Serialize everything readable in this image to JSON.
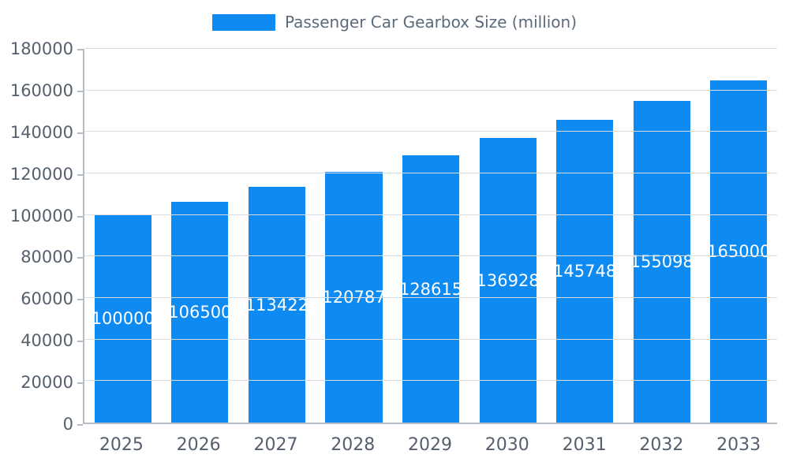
{
  "chart_data": {
    "type": "bar",
    "title": "Passenger Car Gearbox Size (million)",
    "categories": [
      "2025",
      "2026",
      "2027",
      "2028",
      "2029",
      "2030",
      "2031",
      "2032",
      "2033"
    ],
    "values": [
      100000,
      106500,
      113422,
      120787,
      128615,
      136928,
      145748,
      155098,
      165000
    ],
    "xlabel": "",
    "ylabel": "",
    "ylim": [
      0,
      180000
    ],
    "ytick_step": 20000,
    "grid": "on",
    "legend_position": "top"
  },
  "colors": {
    "bar": "#0d8bf2",
    "bar_label_text": "#ffffff",
    "legend_text": "#5b6b7b",
    "axis_text": "#555f6e",
    "gridline": "#d9dde1",
    "axis_line": "#b6bdc4"
  }
}
